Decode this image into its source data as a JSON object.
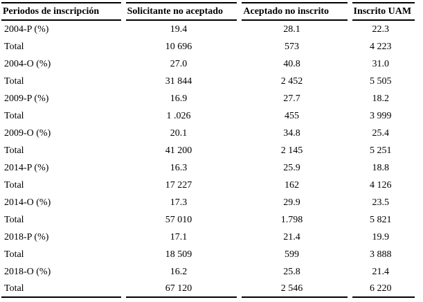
{
  "colors": {
    "background": "#ffffff",
    "text": "#000000",
    "rule": "#000000"
  },
  "table": {
    "columns": [
      "Periodos de inscripción",
      "Solicitante no aceptado",
      "Aceptado no inscrito",
      "Inscrito UAM"
    ],
    "rows": [
      {
        "label": "2004-P (%)",
        "values": [
          "19.4",
          "28.1",
          "22.3"
        ]
      },
      {
        "label": "Total",
        "values": [
          "10 696",
          "573",
          "4 223"
        ]
      },
      {
        "label": "2004-O (%)",
        "values": [
          "27.0",
          "40.8",
          "31.0"
        ]
      },
      {
        "label": "Total",
        "values": [
          "31 844",
          "2 452",
          "5 505"
        ]
      },
      {
        "label": "2009-P (%)",
        "values": [
          "16.9",
          "27.7",
          "18.2"
        ]
      },
      {
        "label": "Total",
        "values": [
          "1 .026",
          "455",
          "3 999"
        ]
      },
      {
        "label": "2009-O (%)",
        "values": [
          "20.1",
          "34.8",
          "25.4"
        ]
      },
      {
        "label": "Total",
        "values": [
          "41 200",
          "2 145",
          "5 251"
        ]
      },
      {
        "label": "2014-P (%)",
        "values": [
          "16.3",
          "25.9",
          "18.8"
        ]
      },
      {
        "label": "Total",
        "values": [
          "17 227",
          "162",
          "4 126"
        ]
      },
      {
        "label": "2014-O (%)",
        "values": [
          "17.3",
          "29.9",
          "23.5"
        ]
      },
      {
        "label": "Total",
        "values": [
          "57 010",
          "1.798",
          "5 821"
        ]
      },
      {
        "label": "2018-P (%)",
        "values": [
          "17.1",
          "21.4",
          "19.9"
        ]
      },
      {
        "label": "Total",
        "values": [
          "18 509",
          "599",
          "3 888"
        ]
      },
      {
        "label": "2018-O (%)",
        "values": [
          "16.2",
          "25.8",
          "21.4"
        ]
      },
      {
        "label": "Total",
        "values": [
          "67 120",
          "2 546",
          "6 220"
        ]
      }
    ]
  }
}
